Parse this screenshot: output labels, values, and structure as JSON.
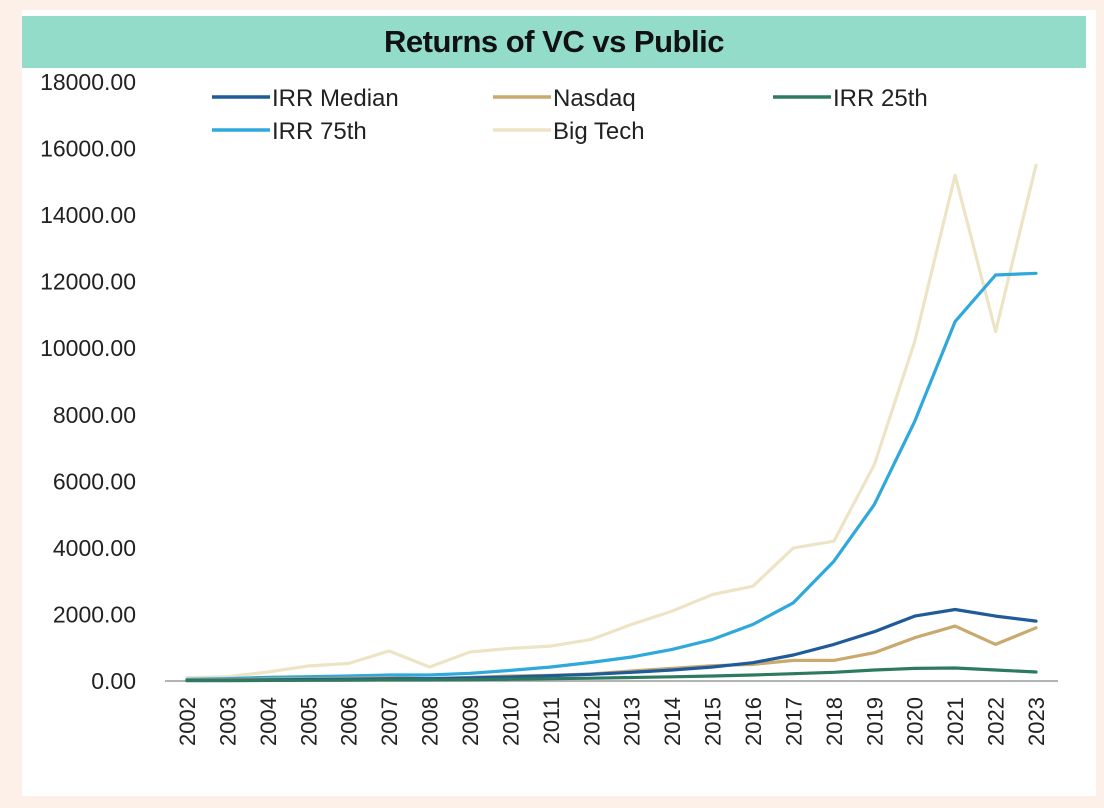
{
  "colors": {
    "title_band": "#93dcc9",
    "background": "#fdf0e8",
    "irr_median": "#1f5b99",
    "nasdaq": "#c9a96e",
    "irr_25th": "#2e7a60",
    "irr_75th": "#2fa8dc",
    "big_tech": "#ede4c6"
  },
  "chart_data": {
    "type": "line",
    "title": "Returns of VC vs Public",
    "xlabel": "",
    "ylabel": "",
    "ylim": [
      0,
      18000
    ],
    "yticks": [
      "0.00",
      "2000.00",
      "4000.00",
      "6000.00",
      "8000.00",
      "10000.00",
      "12000.00",
      "14000.00",
      "16000.00",
      "18000.00"
    ],
    "x": [
      "2002",
      "2003",
      "2004",
      "2005",
      "2006",
      "2007",
      "2008",
      "2009",
      "2010",
      "2011",
      "2012",
      "2013",
      "2014",
      "2015",
      "2016",
      "2017",
      "2018",
      "2019",
      "2020",
      "2021",
      "2022",
      "2023"
    ],
    "legend_position": "top",
    "grid": false,
    "series": [
      {
        "name": "Big Tech",
        "color_key": "big_tech",
        "values": [
          100,
          130,
          270,
          450,
          530,
          900,
          420,
          870,
          980,
          1050,
          1250,
          1700,
          2100,
          2600,
          2850,
          4000,
          4200,
          6500,
          10200,
          15200,
          10500,
          15500
        ]
      },
      {
        "name": "IRR 75th",
        "color_key": "irr_75th",
        "values": [
          50,
          70,
          110,
          130,
          150,
          180,
          180,
          230,
          320,
          420,
          560,
          720,
          950,
          1250,
          1700,
          2350,
          3600,
          5300,
          7800,
          10800,
          12200,
          12250
        ]
      },
      {
        "name": "Nasdaq",
        "color_key": "nasdaq",
        "values": [
          30,
          40,
          60,
          70,
          80,
          100,
          70,
          110,
          150,
          170,
          210,
          300,
          380,
          460,
          500,
          620,
          620,
          850,
          1300,
          1650,
          1100,
          1600
        ]
      },
      {
        "name": "IRR Median",
        "color_key": "irr_median",
        "values": [
          20,
          25,
          35,
          45,
          55,
          70,
          70,
          90,
          120,
          160,
          200,
          260,
          330,
          420,
          550,
          780,
          1100,
          1480,
          1950,
          2150,
          1950,
          1800
        ]
      },
      {
        "name": "IRR 25th",
        "color_key": "irr_25th",
        "values": [
          10,
          12,
          18,
          22,
          26,
          32,
          34,
          40,
          55,
          70,
          85,
          105,
          125,
          150,
          180,
          220,
          260,
          330,
          380,
          390,
          330,
          270
        ]
      }
    ],
    "legend": [
      {
        "name": "IRR Median",
        "color_key": "irr_median"
      },
      {
        "name": "Nasdaq",
        "color_key": "nasdaq"
      },
      {
        "name": "IRR 25th",
        "color_key": "irr_25th"
      },
      {
        "name": "IRR 75th",
        "color_key": "irr_75th"
      },
      {
        "name": "Big Tech",
        "color_key": "big_tech"
      }
    ]
  }
}
